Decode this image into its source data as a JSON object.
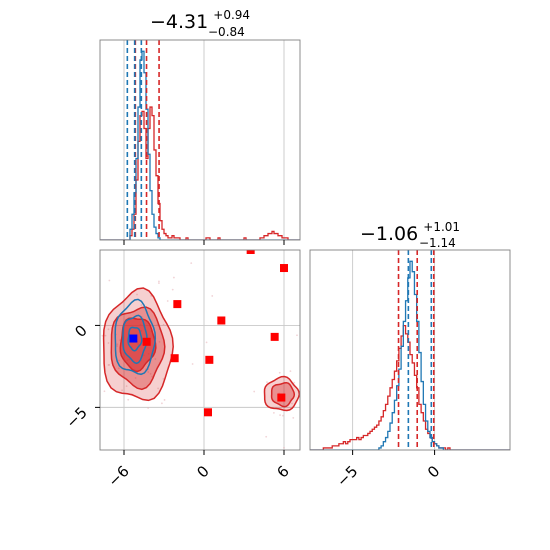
{
  "colors": {
    "sample_a": "#d62728",
    "sample_b": "#1f77b4",
    "truth_marker": "#0000ff",
    "point_marker": "#ff0000"
  },
  "chart_data": {
    "type": "corner",
    "grid": true,
    "parameters": [
      {
        "title": {
          "value": "−4.31",
          "upper": "+0.94",
          "lower": "−0.84"
        },
        "range": [
          -7.8,
          7.2
        ],
        "ticks": [
          -6,
          0,
          6
        ],
        "tick_labels": [
          "−6",
          "0",
          "6"
        ],
        "quantile_lines": [
          {
            "series": "sample_a",
            "values": [
              -5.15,
              -4.31,
              -3.37
            ]
          },
          {
            "series": "sample_b",
            "values": [
              -5.75,
              -5.2,
              -4.7
            ]
          }
        ]
      },
      {
        "title": {
          "value": "−1.06",
          "upper": "+1.01",
          "lower": "−1.14"
        },
        "range": [
          -7.6,
          4.6
        ],
        "ticks": [
          -5,
          0
        ],
        "tick_labels": [
          "−5",
          "0"
        ],
        "quantile_lines": [
          {
            "series": "sample_a",
            "values": [
              -2.2,
              -1.06,
              -0.05
            ]
          },
          {
            "series": "sample_b",
            "values": [
              -1.6,
              -0.2
            ]
          }
        ]
      }
    ],
    "marginals": [
      {
        "parameter": 0,
        "bins": [
          -7.8,
          7.2,
          100
        ],
        "series": [
          {
            "id": "sample_a",
            "counts": [
              0,
              0,
              0,
              0,
              0,
              0,
              0,
              0,
              0,
              0,
              0,
              0,
              0,
              0,
              0,
              2,
              5,
              12,
              28,
              46,
              58,
              60,
              52,
              38,
              52,
              62,
              58,
              42,
              30,
              17,
              9,
              5,
              3,
              2,
              1,
              1,
              2,
              1,
              1,
              1,
              0,
              0,
              0,
              1,
              0,
              0,
              0,
              0,
              0,
              0,
              0,
              0,
              0,
              1,
              1,
              0,
              0,
              0,
              0,
              1,
              0,
              0,
              0,
              0,
              0,
              0,
              0,
              0,
              0,
              0,
              0,
              0,
              1,
              0,
              0,
              0,
              0,
              0,
              0,
              0,
              1,
              1,
              2,
              2,
              3,
              3,
              4,
              3,
              3,
              2,
              2,
              1,
              1,
              1,
              0,
              0,
              0,
              0,
              0,
              0
            ]
          },
          {
            "id": "sample_b",
            "counts": [
              0,
              0,
              0,
              0,
              0,
              0,
              0,
              0,
              0,
              0,
              0,
              0,
              0,
              0,
              0,
              5,
              12,
              22,
              38,
              62,
              84,
              88,
              78,
              61,
              40,
              23,
              12,
              6,
              3,
              1,
              0,
              0,
              0,
              0,
              0,
              0,
              0,
              0,
              0,
              0,
              0,
              0,
              0,
              0,
              0,
              0,
              0,
              0,
              0,
              0,
              0,
              0,
              0,
              0,
              0,
              0,
              0,
              0,
              0,
              0,
              0,
              0,
              0,
              0,
              0,
              0,
              0,
              0,
              0,
              0,
              0,
              0,
              0,
              0,
              0,
              0,
              0,
              0,
              0,
              0,
              0,
              0,
              0,
              0,
              0,
              0,
              0,
              0,
              0,
              0,
              0,
              0,
              0,
              0,
              0,
              0,
              0,
              0,
              0,
              0
            ]
          }
        ]
      },
      {
        "parameter": 1,
        "bins": [
          -7.6,
          4.6,
          90
        ],
        "series": [
          {
            "id": "sample_a",
            "counts": [
              0,
              0,
              0,
              0,
              0,
              0,
              1,
              1,
              1,
              1,
              2,
              2,
              2,
              3,
              3,
              4,
              3,
              4,
              5,
              5,
              5,
              6,
              5,
              6,
              7,
              7,
              8,
              9,
              10,
              11,
              12,
              14,
              16,
              19,
              22,
              26,
              30,
              34,
              38,
              43,
              49,
              55,
              60,
              56,
              52,
              46,
              42,
              36,
              30,
              22,
              18,
              14,
              10,
              8,
              6,
              4,
              3,
              2,
              1,
              1,
              1,
              0,
              1,
              0,
              0,
              0,
              0,
              0,
              0,
              0,
              0,
              0,
              0,
              0,
              0,
              0,
              0,
              0,
              0,
              0,
              0,
              0,
              0,
              0,
              0,
              0,
              0,
              0,
              0,
              0
            ]
          },
          {
            "id": "sample_b",
            "counts": [
              0,
              0,
              0,
              0,
              0,
              0,
              0,
              0,
              0,
              0,
              0,
              0,
              0,
              0,
              0,
              0,
              0,
              0,
              0,
              0,
              0,
              0,
              0,
              0,
              0,
              0,
              0,
              0,
              0,
              0,
              0,
              1,
              2,
              4,
              6,
              9,
              13,
              18,
              24,
              31,
              39,
              50,
              62,
              72,
              83,
              91,
              86,
              75,
              62,
              47,
              33,
              22,
              14,
              9,
              6,
              4,
              3,
              2,
              1,
              1,
              0,
              0,
              0,
              0,
              0,
              0,
              0,
              0,
              0,
              0,
              0,
              0,
              0,
              0,
              0,
              0,
              0,
              0,
              0,
              0,
              0,
              0,
              0,
              0,
              0,
              0,
              0,
              0,
              0,
              0
            ]
          }
        ]
      }
    ],
    "joint": {
      "x_parameter": 0,
      "y_parameter": 1,
      "contours": [
        {
          "series": "sample_a",
          "level": 1,
          "filled": true,
          "center": [
            -5.0,
            -1.3
          ],
          "radii": [
            2.6,
            3.3
          ]
        },
        {
          "series": "sample_a",
          "level": 2,
          "filled": true,
          "center": [
            -5.0,
            -1.3
          ],
          "radii": [
            2.0,
            2.4
          ]
        },
        {
          "series": "sample_a",
          "level": 3,
          "filled": true,
          "center": [
            -5.0,
            -1.1
          ],
          "radii": [
            1.3,
            1.6
          ]
        },
        {
          "series": "sample_a",
          "level": 1,
          "filled": true,
          "center": [
            5.8,
            -4.2
          ],
          "radii": [
            1.3,
            1.0
          ]
        },
        {
          "series": "sample_a",
          "level": 2,
          "filled": true,
          "center": [
            5.9,
            -4.2
          ],
          "radii": [
            0.85,
            0.7
          ]
        },
        {
          "series": "sample_b",
          "level": 1,
          "filled": false,
          "center": [
            -5.2,
            -0.8
          ],
          "radii": [
            1.5,
            2.2
          ]
        },
        {
          "series": "sample_b",
          "level": 2,
          "filled": false,
          "center": [
            -5.2,
            -0.8
          ],
          "radii": [
            0.9,
            1.4
          ]
        },
        {
          "series": "sample_b",
          "level": 3,
          "filled": false,
          "center": [
            -5.2,
            -0.8
          ],
          "radii": [
            0.5,
            0.7
          ]
        }
      ],
      "points": [
        {
          "x": 3.5,
          "y": 4.6
        },
        {
          "x": 6.0,
          "y": 3.5
        },
        {
          "x": -2.0,
          "y": 1.3
        },
        {
          "x": 1.3,
          "y": 0.3
        },
        {
          "x": 5.3,
          "y": -0.7
        },
        {
          "x": -4.3,
          "y": -1.0
        },
        {
          "x": -2.2,
          "y": -2.0
        },
        {
          "x": 0.4,
          "y": -2.1
        },
        {
          "x": 5.8,
          "y": -4.4
        },
        {
          "x": 0.3,
          "y": -5.3
        }
      ],
      "truth": {
        "x": -5.3,
        "y": -0.8
      }
    }
  }
}
